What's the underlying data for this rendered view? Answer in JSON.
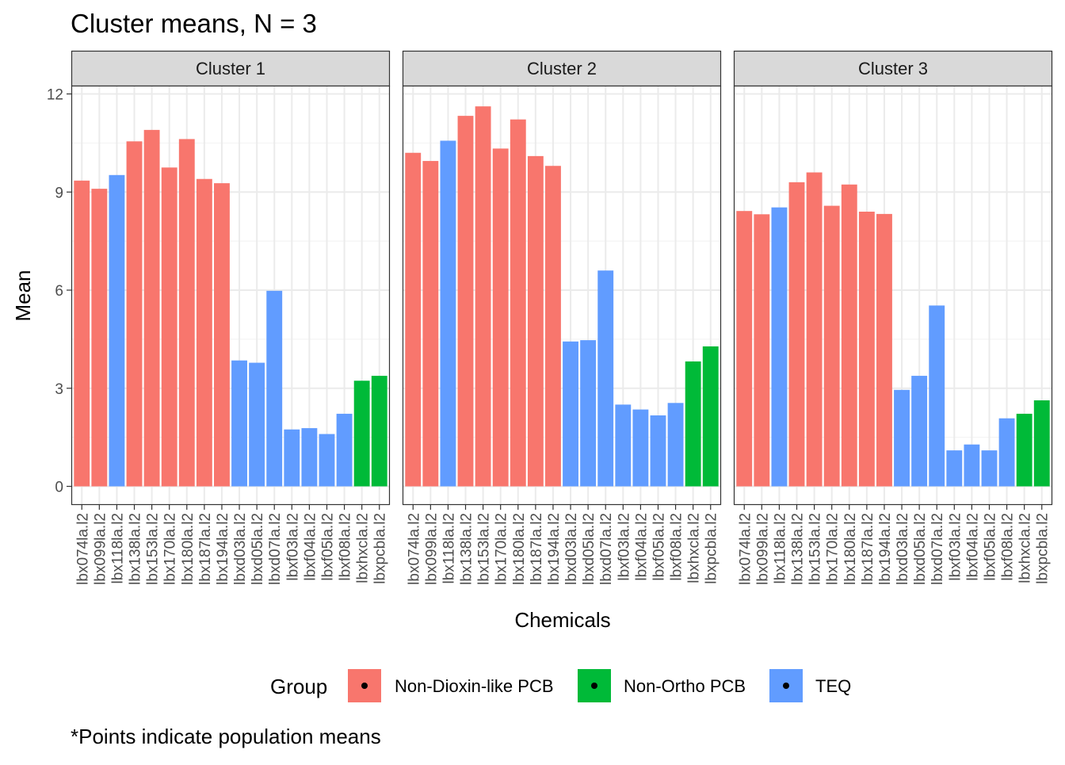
{
  "chart_data": {
    "type": "bar",
    "title": "Cluster means, N = 3",
    "xlabel": "Chemicals",
    "ylabel": "Mean",
    "ylim": [
      0,
      12
    ],
    "y_ticks": [
      0,
      3,
      6,
      9,
      12
    ],
    "grid": true,
    "legend_position": "bottom",
    "caption": "*Points indicate population means",
    "legend": {
      "title": "Group",
      "entries": [
        {
          "name": "Non-Dioxin-like PCB",
          "color": "#F8766D"
        },
        {
          "name": "Non-Ortho PCB",
          "color": "#00BA38"
        },
        {
          "name": "TEQ",
          "color": "#619CFF"
        }
      ]
    },
    "categories": [
      "lbx074la.l2",
      "lbx099la.l2",
      "lbx118la.l2",
      "lbx138la.l2",
      "lbx153la.l2",
      "lbx170la.l2",
      "lbx180la.l2",
      "lbx187la.l2",
      "lbx194la.l2",
      "lbxd03la.l2",
      "lbxd05la.l2",
      "lbxd07la.l2",
      "lbxf03la.l2",
      "lbxf04la.l2",
      "lbxf05la.l2",
      "lbxf08la.l2",
      "lbxhxcla.l2",
      "lbxpcbla.l2"
    ],
    "category_groups": [
      "Non-Dioxin-like PCB",
      "Non-Dioxin-like PCB",
      "TEQ",
      "Non-Dioxin-like PCB",
      "Non-Dioxin-like PCB",
      "Non-Dioxin-like PCB",
      "Non-Dioxin-like PCB",
      "Non-Dioxin-like PCB",
      "Non-Dioxin-like PCB",
      "TEQ",
      "TEQ",
      "TEQ",
      "TEQ",
      "TEQ",
      "TEQ",
      "TEQ",
      "Non-Ortho PCB",
      "Non-Ortho PCB"
    ],
    "panels": [
      {
        "name": "Cluster 1",
        "values": [
          9.35,
          9.1,
          9.52,
          10.55,
          10.9,
          9.75,
          10.62,
          9.4,
          9.27,
          3.85,
          3.78,
          5.98,
          1.74,
          1.78,
          1.6,
          2.22,
          3.23,
          3.38
        ]
      },
      {
        "name": "Cluster 2",
        "values": [
          10.2,
          9.95,
          10.57,
          11.33,
          11.62,
          10.33,
          11.22,
          10.1,
          9.8,
          4.43,
          4.47,
          6.6,
          2.5,
          2.35,
          2.17,
          2.55,
          3.82,
          4.28
        ]
      },
      {
        "name": "Cluster 3",
        "values": [
          8.42,
          8.32,
          8.53,
          9.3,
          9.6,
          8.58,
          9.23,
          8.4,
          8.33,
          2.95,
          3.38,
          5.53,
          1.1,
          1.28,
          1.1,
          2.08,
          2.22,
          2.63
        ]
      }
    ]
  }
}
